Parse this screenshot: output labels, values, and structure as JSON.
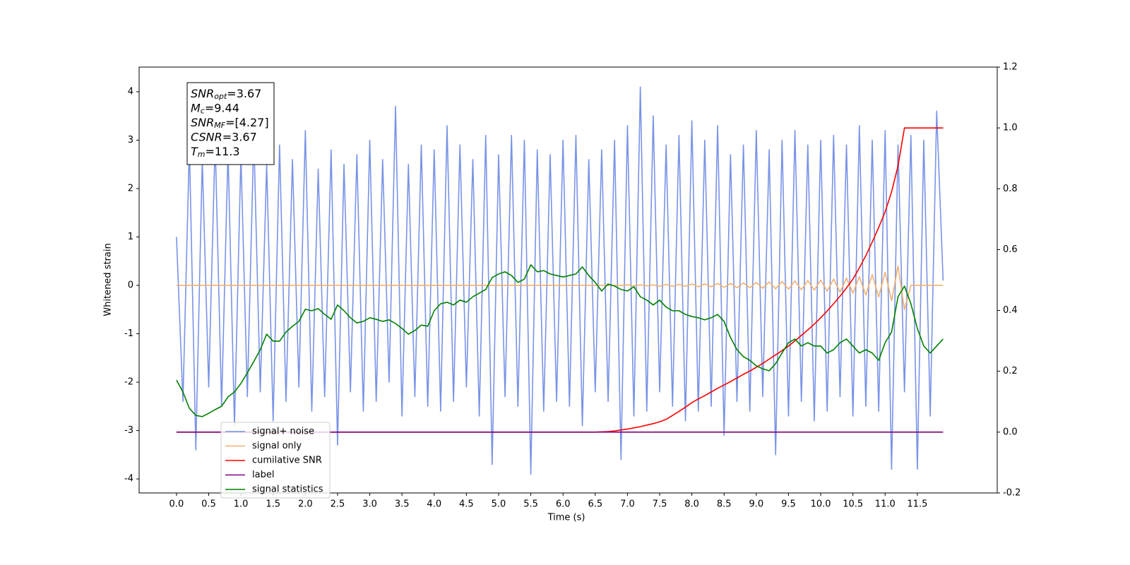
{
  "chart_data": {
    "type": "line",
    "xlabel": "Time (s)",
    "ylabel": "Whitened strain",
    "xlim": [
      -0.58,
      12.74
    ],
    "ylim": [
      -4.29,
      4.51
    ],
    "y2lim": [
      -0.2,
      1.2
    ],
    "xticks": [
      {
        "value": 0,
        "label": "0.0"
      },
      0.5,
      {
        "value": 1,
        "label": "1.0"
      },
      1.5,
      {
        "value": 2,
        "label": "2.0"
      },
      2.5,
      {
        "value": 3,
        "label": "3.0"
      },
      3.5,
      {
        "value": 4,
        "label": "4.0"
      },
      4.5,
      {
        "value": 5,
        "label": "5.0"
      },
      5.5,
      {
        "value": 6,
        "label": "6.0"
      },
      6.5,
      {
        "value": 7,
        "label": "7.0"
      },
      7.5,
      {
        "value": 8,
        "label": "8.0"
      },
      8.5,
      {
        "value": 9,
        "label": "9.0"
      },
      9.5,
      {
        "value": 10,
        "label": "10.0"
      },
      10.5,
      {
        "value": 11,
        "label": "11.0"
      },
      11.5
    ],
    "yticks": [
      -4,
      -3,
      -2,
      -1,
      0,
      1,
      2,
      3,
      4
    ],
    "y2ticks": [
      -0.2,
      {
        "value": 0,
        "label": "0.0"
      },
      0.2,
      0.4,
      0.6,
      0.8,
      {
        "value": 1,
        "label": "1.0"
      },
      1.2
    ],
    "legend_loc": "lower left",
    "annotation": [
      {
        "main": "SNR",
        "sub": "opt",
        "rest": "=3.67"
      },
      {
        "main": "M",
        "sub": "c",
        "rest": "=9.44"
      },
      {
        "main": "SNR",
        "sub": "MF",
        "rest": "=[4.27]"
      },
      {
        "main": "CSNR",
        "rest": "=3.67"
      },
      {
        "main": "T",
        "sub": "m",
        "rest": "=11.3"
      }
    ],
    "x": [
      0,
      0.1,
      0.2,
      0.3,
      0.4,
      0.5,
      0.6,
      0.7,
      0.8,
      0.9,
      1,
      1.1,
      1.2,
      1.3,
      1.4,
      1.5,
      1.6,
      1.7,
      1.8,
      1.9,
      2,
      2.1,
      2.2,
      2.3,
      2.4,
      2.5,
      2.6,
      2.7,
      2.8,
      2.9,
      3,
      3.1,
      3.2,
      3.3,
      3.4,
      3.5,
      3.6,
      3.7,
      3.8,
      3.9,
      4,
      4.1,
      4.2,
      4.3,
      4.4,
      4.5,
      4.6,
      4.7,
      4.8,
      4.9,
      5,
      5.1,
      5.2,
      5.3,
      5.4,
      5.5,
      5.6,
      5.7,
      5.8,
      5.9,
      6,
      6.1,
      6.2,
      6.3,
      6.4,
      6.5,
      6.6,
      6.7,
      6.8,
      6.9,
      7,
      7.1,
      7.2,
      7.3,
      7.4,
      7.5,
      7.6,
      7.7,
      7.8,
      7.9,
      8,
      8.1,
      8.2,
      8.3,
      8.4,
      8.5,
      8.6,
      8.7,
      8.8,
      8.9,
      9,
      9.1,
      9.2,
      9.3,
      9.4,
      9.5,
      9.6,
      9.7,
      9.8,
      9.9,
      10,
      10.1,
      10.2,
      10.3,
      10.4,
      10.5,
      10.6,
      10.7,
      10.8,
      10.9,
      11,
      11.1,
      11.2,
      11.3,
      11.4,
      11.5,
      11.6,
      11.7,
      11.8,
      11.9
    ],
    "series": [
      {
        "name": "signal+ noise",
        "color": "#7893e6",
        "values": [
          1.0,
          -2.4,
          2.9,
          -3.4,
          2.6,
          -2.1,
          3.0,
          -2.5,
          2.8,
          -2.9,
          2.7,
          -2.3,
          3.1,
          -2.2,
          2.5,
          -2.8,
          2.9,
          -2.4,
          2.6,
          -2.1,
          3.2,
          -2.6,
          2.4,
          -2.3,
          2.8,
          -3.3,
          2.5,
          -2.2,
          2.7,
          -2.6,
          3.0,
          -2.4,
          2.6,
          -2.0,
          3.7,
          -2.7,
          2.5,
          -2.3,
          2.9,
          -2.5,
          2.8,
          -2.6,
          3.3,
          -2.4,
          2.9,
          -2.1,
          2.6,
          -2.7,
          3.1,
          -3.7,
          2.7,
          -2.3,
          3.1,
          -2.5,
          3.0,
          -3.9,
          2.8,
          -2.6,
          2.7,
          -2.4,
          3.0,
          -2.5,
          3.1,
          -2.9,
          2.6,
          -2.2,
          2.8,
          -2.4,
          3.0,
          -3.6,
          3.3,
          -2.7,
          4.1,
          -2.6,
          3.5,
          -2.2,
          2.9,
          -2.5,
          3.1,
          -2.8,
          3.4,
          -2.6,
          3.0,
          -2.5,
          3.3,
          -3.1,
          2.7,
          -2.4,
          2.9,
          -2.6,
          3.2,
          -2.3,
          2.8,
          -3.5,
          3.0,
          -2.7,
          3.2,
          -2.4,
          2.9,
          -2.8,
          3.0,
          -2.6,
          3.1,
          -2.3,
          2.9,
          -2.7,
          3.3,
          -2.5,
          3.0,
          -2.6,
          3.2,
          -3.8,
          2.9,
          -2.2,
          3.1,
          -3.8,
          3.0,
          -2.7,
          3.6,
          0.1
        ]
      },
      {
        "name": "signal only",
        "color": "#f0b070",
        "values": [
          0,
          0,
          0,
          0,
          0,
          0,
          0,
          0,
          0,
          0,
          0,
          0,
          0,
          0,
          0,
          0,
          0,
          0,
          0,
          0,
          0,
          0,
          0,
          0,
          0,
          0,
          0,
          0,
          0,
          0,
          0,
          0,
          0,
          0,
          0,
          0,
          0,
          0,
          0,
          0,
          0,
          0,
          0,
          0,
          0,
          0,
          0,
          0,
          0,
          0,
          0,
          0,
          0,
          0,
          0,
          0,
          0,
          0,
          0,
          0,
          0,
          0,
          0,
          0,
          0,
          0,
          0,
          0,
          0,
          0,
          0.01,
          -0.01,
          0.01,
          -0.01,
          0.01,
          -0.02,
          0.02,
          -0.02,
          0.02,
          -0.02,
          0.03,
          -0.03,
          0.03,
          -0.03,
          0.04,
          -0.04,
          0.04,
          -0.05,
          0.05,
          -0.05,
          0.06,
          -0.06,
          0.07,
          -0.07,
          0.08,
          -0.08,
          0.09,
          -0.09,
          0.1,
          -0.1,
          0.11,
          -0.12,
          0.13,
          -0.14,
          0.15,
          -0.16,
          0.18,
          -0.2,
          0.22,
          -0.24,
          0.27,
          -0.32,
          0.4,
          -0.5,
          0,
          0,
          0,
          0,
          0,
          0
        ]
      },
      {
        "name": "cumilative SNR",
        "color": "#ff0000",
        "axis": "y2",
        "values": [
          0,
          0,
          0,
          0,
          0,
          0,
          0,
          0,
          0,
          0,
          0,
          0,
          0,
          0,
          0,
          0,
          0,
          0,
          0,
          0,
          0,
          0,
          0,
          0,
          0,
          0,
          0,
          0,
          0,
          0,
          0,
          0,
          0,
          0,
          0,
          0,
          0,
          0,
          0,
          0,
          0,
          0,
          0,
          0,
          0,
          0,
          0,
          0,
          0,
          0,
          0,
          0,
          0,
          0,
          0,
          0,
          0,
          0,
          0,
          0,
          0,
          0,
          0,
          0,
          0,
          0,
          0.001,
          0.002,
          0.004,
          0.007,
          0.01,
          0.014,
          0.018,
          0.023,
          0.028,
          0.034,
          0.042,
          0.055,
          0.068,
          0.082,
          0.097,
          0.109,
          0.12,
          0.132,
          0.144,
          0.155,
          0.166,
          0.178,
          0.19,
          0.201,
          0.213,
          0.226,
          0.24,
          0.254,
          0.268,
          0.283,
          0.3,
          0.318,
          0.336,
          0.355,
          0.376,
          0.398,
          0.422,
          0.447,
          0.474,
          0.503,
          0.54,
          0.58,
          0.625,
          0.673,
          0.724,
          0.79,
          0.875,
          1.0,
          1.0,
          1.0,
          1.0,
          1.0,
          1.0,
          1.0
        ]
      },
      {
        "name": "label",
        "color": "#800080",
        "axis": "y2",
        "values": [
          0,
          0,
          0,
          0,
          0,
          0,
          0,
          0,
          0,
          0,
          0,
          0,
          0,
          0,
          0,
          0,
          0,
          0,
          0,
          0,
          0,
          0,
          0,
          0,
          0,
          0,
          0,
          0,
          0,
          0,
          0,
          0,
          0,
          0,
          0,
          0,
          0,
          0,
          0,
          0,
          0,
          0,
          0,
          0,
          0,
          0,
          0,
          0,
          0,
          0,
          0,
          0,
          0,
          0,
          0,
          0,
          0,
          0,
          0,
          0,
          0,
          0,
          0,
          0,
          0,
          0,
          0,
          0,
          0,
          0,
          0,
          0,
          0,
          0,
          0,
          0,
          0,
          0,
          0,
          0,
          0,
          0,
          0,
          0,
          0,
          0,
          0,
          0,
          0,
          0,
          0,
          0,
          0,
          0,
          0,
          0,
          0,
          0,
          0,
          0,
          0,
          0,
          0,
          0,
          0,
          0,
          0,
          0,
          0,
          0,
          0,
          0,
          0,
          0,
          0,
          0,
          0,
          0,
          0,
          0
        ]
      },
      {
        "name": "signal statistics",
        "color": "#008000",
        "axis": "y2",
        "values": [
          0.171,
          0.132,
          0.078,
          0.055,
          0.051,
          0.062,
          0.074,
          0.085,
          0.116,
          0.132,
          0.16,
          0.195,
          0.232,
          0.271,
          0.322,
          0.299,
          0.299,
          0.329,
          0.348,
          0.364,
          0.404,
          0.399,
          0.406,
          0.387,
          0.371,
          0.418,
          0.399,
          0.376,
          0.359,
          0.364,
          0.376,
          0.371,
          0.364,
          0.369,
          0.357,
          0.341,
          0.322,
          0.334,
          0.352,
          0.348,
          0.399,
          0.422,
          0.427,
          0.418,
          0.434,
          0.427,
          0.445,
          0.457,
          0.469,
          0.508,
          0.52,
          0.527,
          0.515,
          0.492,
          0.503,
          0.55,
          0.527,
          0.531,
          0.52,
          0.515,
          0.51,
          0.515,
          0.52,
          0.543,
          0.515,
          0.492,
          0.464,
          0.487,
          0.48,
          0.469,
          0.464,
          0.478,
          0.445,
          0.434,
          0.418,
          0.434,
          0.411,
          0.399,
          0.399,
          0.387,
          0.38,
          0.376,
          0.369,
          0.376,
          0.387,
          0.364,
          0.311,
          0.271,
          0.248,
          0.236,
          0.218,
          0.208,
          0.202,
          0.225,
          0.26,
          0.294,
          0.306,
          0.283,
          0.294,
          0.283,
          0.283,
          0.26,
          0.271,
          0.294,
          0.306,
          0.283,
          0.26,
          0.271,
          0.26,
          0.236,
          0.294,
          0.329,
          0.445,
          0.48,
          0.422,
          0.341,
          0.283,
          0.26,
          0.283,
          0.306
        ]
      }
    ]
  }
}
